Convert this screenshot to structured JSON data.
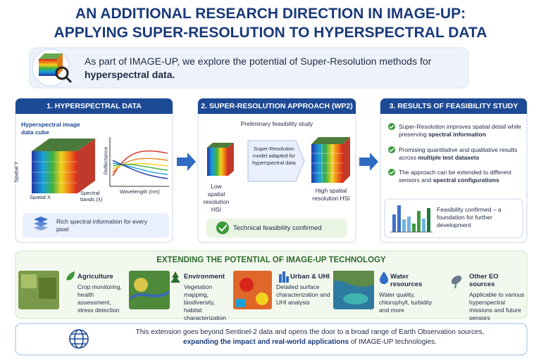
{
  "header": {
    "title_line1": "AN ADDITIONAL RESEARCH DIRECTION IN IMAGE-UP:",
    "title_line2": "APPLYING SUPER-RESOLUTION TO HYPERSPECTRAL DATA"
  },
  "intro": {
    "text": "As part of IMAGE-UP, we explore the potential of Super-Resolution methods for",
    "bold": "hyperspectral data."
  },
  "panels": [
    {
      "title": "1. HYPERSPECTRAL DATA",
      "cube_label": "Hyperspectral image data cube",
      "spatial_y": "Spatial Y",
      "spatial_x": "Spatial X",
      "bands": "Spectral bands (λ)",
      "reflectance": "Reflectance",
      "wavelength": "Wavelength (nm)",
      "footer": "Rich spectral information for every pixel"
    },
    {
      "title": "2. SUPER-RESOLUTION APPROACH (WP2)",
      "subtitle": "Preliminary feasibility study",
      "low": "Low spatial resolution HSI",
      "model": "Super-Resolution model adapted for hyperspectral data",
      "high": "High spatial resolution HSI",
      "footer": "Technical feasibility confirmed"
    },
    {
      "title": "3. RESULTS OF FEASIBILITY STUDY",
      "items": [
        {
          "text": "Super-Resolution improves spatial detail while preserving",
          "bold": "spectral information"
        },
        {
          "text": "Promising quantitative and qualitative results across",
          "bold": "multiple test datasets"
        },
        {
          "text": "The approach can be extended to different sensors and",
          "bold": "spectral configurations"
        }
      ],
      "footer": "Feasibility confirmed – a foundation for further development"
    }
  ],
  "extending": {
    "title": "EXTENDING THE POTENTIAL OF IMAGE-UP TECHNOLOGY",
    "items": [
      {
        "title": "Agriculture",
        "text": "Crop monitoring, health assessment, stress detection"
      },
      {
        "title": "Environment",
        "text": "Vegetation mapping, biodiversity, habitat characterization"
      },
      {
        "title": "Urban & UHI",
        "text": "Detailed surface characterization and UHI analysis"
      },
      {
        "title": "Water resources",
        "text": "Water quality, chlorophyll, turbidity and more"
      },
      {
        "title": "Other EO sources",
        "text": "Applicable to various hyperspectral missions and future sensors"
      }
    ]
  },
  "footer": {
    "text": "This extension goes beyond Sentinel-2 data and opens the door to a broad range of Earth Observation sources,",
    "bold": "expanding the impact and real-world applications",
    "end": "of IMAGE-UP technologies."
  }
}
